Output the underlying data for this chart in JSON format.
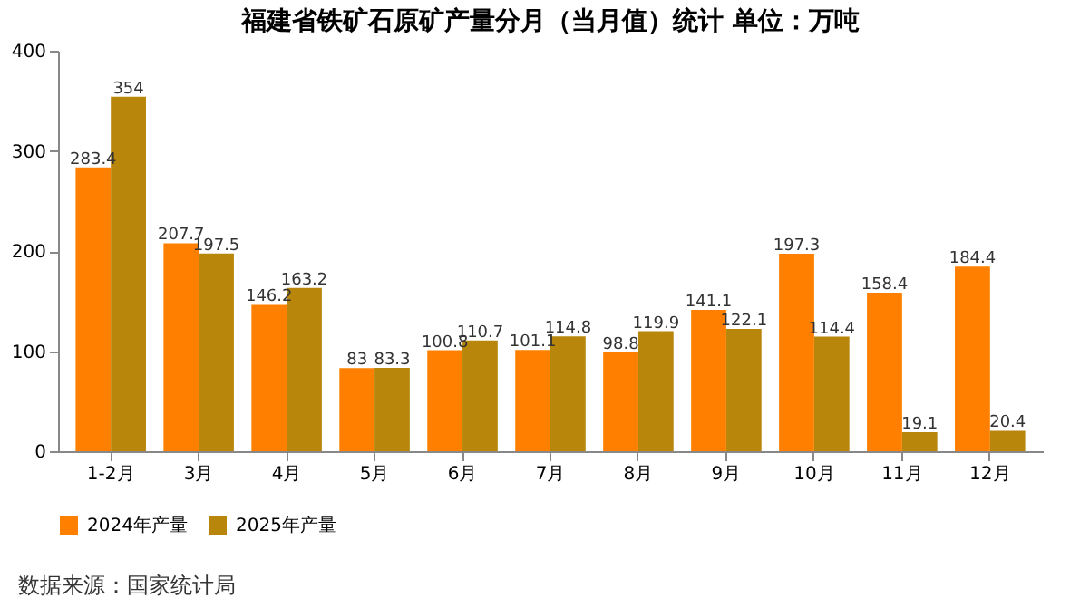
{
  "chart_data": {
    "type": "bar",
    "title": "福建省铁矿石原矿产量分月（当月值）统计  单位：万吨",
    "categories": [
      "1-2月",
      "3月",
      "4月",
      "5月",
      "6月",
      "7月",
      "8月",
      "9月",
      "10月",
      "11月",
      "12月"
    ],
    "series": [
      {
        "name": "2024年产量",
        "color": "#ff8000",
        "values": [
          283.4,
          207.7,
          146.2,
          83,
          100.8,
          101.1,
          98.8,
          141.1,
          197.3,
          158.4,
          184.4
        ]
      },
      {
        "name": "2025年产量",
        "color": "#b8860b",
        "values": [
          354,
          197.5,
          163.2,
          83.3,
          110.7,
          114.8,
          119.9,
          122.1,
          114.4,
          19.1,
          20.4
        ]
      }
    ],
    "ylim": [
      0,
      400
    ],
    "yticks": [
      0,
      100,
      200,
      300,
      400
    ],
    "data_labels": true,
    "legend": "bottom",
    "annotations": [
      "数据来源：国家统计局"
    ]
  }
}
